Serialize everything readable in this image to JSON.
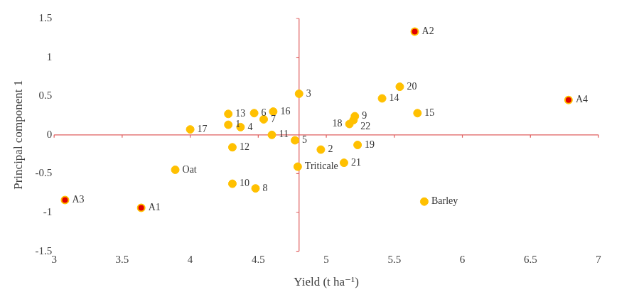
{
  "chart_data": {
    "type": "scatter",
    "x_label": "Yield (t ha⁻¹)",
    "y_label": "Principal component 1",
    "xlim": [
      3,
      7
    ],
    "xticks": [
      3,
      3.5,
      4,
      4.5,
      5,
      5.5,
      6,
      6.5,
      7
    ],
    "ylim": [
      -1.5,
      1.5
    ],
    "yticks": [
      -1.5,
      -1,
      -0.5,
      0,
      0.5,
      1,
      1.5
    ],
    "axis_cross": {
      "x": 4.8,
      "y": 0
    },
    "grid": false,
    "legend": false,
    "data_labels": true,
    "series": [
      {
        "color": "#ffc000",
        "marker": "circle",
        "labels": [
          "3",
          "13",
          "6",
          "16",
          "7",
          "1",
          "4",
          "17",
          "11",
          "5",
          "12",
          "2",
          "19",
          "9",
          "22",
          "18",
          "14",
          "20",
          "15",
          "21",
          "Triticale",
          "Oat",
          "10",
          "8",
          "Barley"
        ],
        "x": [
          4.8,
          4.28,
          4.47,
          4.61,
          4.54,
          4.28,
          4.37,
          4.0,
          4.6,
          4.77,
          4.31,
          4.96,
          5.23,
          5.21,
          5.2,
          5.17,
          5.41,
          5.54,
          5.67,
          5.13,
          4.79,
          3.89,
          4.31,
          4.48,
          5.72
        ],
        "y": [
          0.53,
          0.27,
          0.28,
          0.3,
          0.2,
          0.13,
          0.1,
          0.07,
          0.0,
          -0.07,
          -0.16,
          -0.19,
          -0.13,
          0.24,
          0.19,
          0.14,
          0.47,
          0.62,
          0.28,
          -0.36,
          -0.41,
          -0.45,
          -0.63,
          -0.69,
          -0.86
        ]
      },
      {
        "color": "#e00000",
        "marker": "ringed",
        "labels": [
          "A2",
          "A4",
          "A3",
          "A1"
        ],
        "x": [
          5.65,
          6.78,
          3.08,
          3.64
        ],
        "y": [
          1.33,
          0.45,
          -0.84,
          -0.94
        ]
      }
    ]
  }
}
